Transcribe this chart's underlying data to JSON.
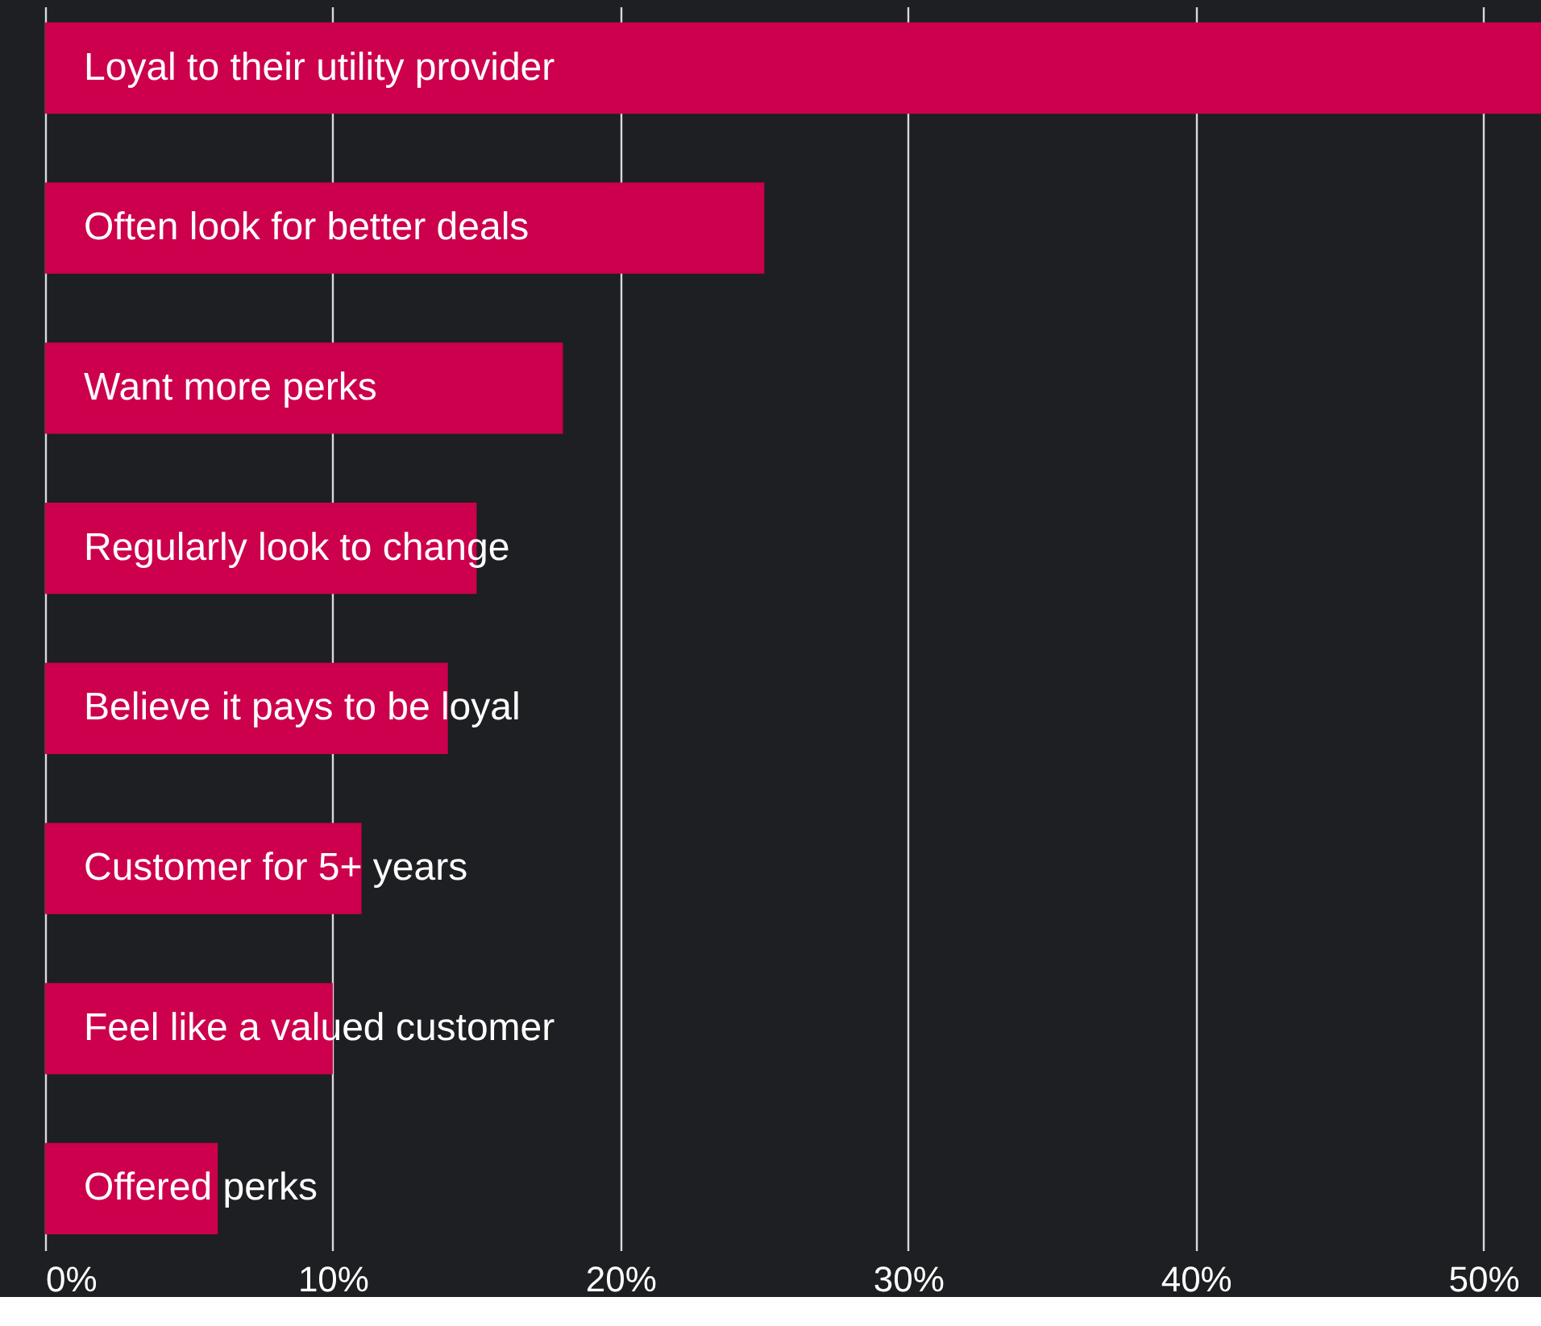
{
  "chart_data": {
    "type": "bar",
    "orientation": "horizontal",
    "categories": [
      "Loyal to their utility provider",
      "Often look for better deals",
      "Want more perks",
      "Regularly look to change",
      "Believe it pays to be loyal",
      "Customer for 5+ years",
      "Feel like a valued customer",
      "Offered perks"
    ],
    "values": [
      52,
      25,
      18,
      15,
      14,
      11,
      10,
      6
    ],
    "color": "#cc004c",
    "xlim": [
      0,
      52
    ],
    "xticks": [
      {
        "value": 0,
        "label": "0%"
      },
      {
        "value": 10,
        "label": "10%"
      },
      {
        "value": 20,
        "label": "20%"
      },
      {
        "value": 30,
        "label": "30%"
      },
      {
        "value": 40,
        "label": "40%"
      },
      {
        "value": 50,
        "label": "50%"
      }
    ],
    "grid": "x",
    "tick_labels": "x"
  }
}
